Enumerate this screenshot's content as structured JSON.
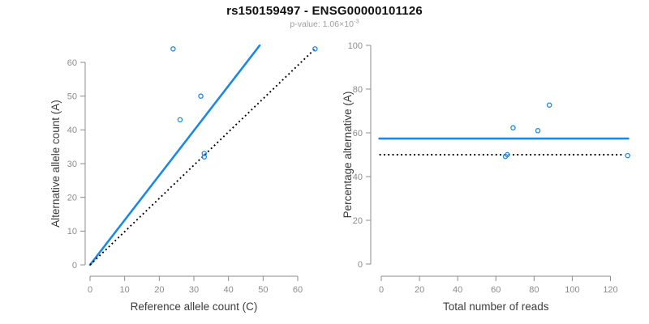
{
  "header": {
    "title": "rs150159497 - ENSG00000101126",
    "subtitle_base": "p-value: 1.06×10",
    "subtitle_exponent": "-3"
  },
  "colors": {
    "accent_blue": "#1E88E5",
    "axis_line_gray": "#8C8C8C",
    "tick_label_gray": "#8C8C8C",
    "axis_title_dark": "#3D3D3D",
    "dotted_black": "#000000",
    "title_black": "#111111",
    "subtitle_gray": "#9E9E9E",
    "background": "#FFFFFF"
  },
  "chart_data": [
    {
      "type": "scatter",
      "name": "allele-counts-panel",
      "xlabel": "Reference allele count (C)",
      "ylabel": "Alternative allele count (A)",
      "xticks": [
        0,
        10,
        20,
        30,
        40,
        50,
        60
      ],
      "yticks": [
        0,
        10,
        20,
        30,
        40,
        50,
        60
      ],
      "xlim": [
        0,
        65.5
      ],
      "ylim": [
        0,
        65.5
      ],
      "grid": false,
      "legend": false,
      "points": [
        {
          "x": 24,
          "y": 64
        },
        {
          "x": 26,
          "y": 43
        },
        {
          "x": 32,
          "y": 50
        },
        {
          "x": 33,
          "y": 32
        },
        {
          "x": 33,
          "y": 33
        },
        {
          "x": 65,
          "y": 64
        }
      ],
      "lines": [
        {
          "name": "fitted-ratio-line",
          "style": "solid",
          "color": "accent_blue",
          "x1": 0,
          "y1": 0,
          "x2": 49,
          "y2": 65
        },
        {
          "name": "identity-line",
          "style": "dotted",
          "color": "dotted_black",
          "x1": 0,
          "y1": 0,
          "x2": 65.3,
          "y2": 64.3
        }
      ]
    },
    {
      "type": "scatter",
      "name": "percentage-panel",
      "xlabel": "Total number of reads",
      "ylabel": "Percentage alternative (A)",
      "xticks": [
        0,
        20,
        40,
        60,
        80,
        100,
        120
      ],
      "yticks": [
        0,
        20,
        40,
        60,
        80,
        100
      ],
      "xlim": [
        0,
        132
      ],
      "ylim": [
        0,
        101
      ],
      "grid": false,
      "legend": false,
      "points": [
        {
          "x": 65,
          "y": 49.2
        },
        {
          "x": 66,
          "y": 50
        },
        {
          "x": 69,
          "y": 62.3
        },
        {
          "x": 82,
          "y": 61
        },
        {
          "x": 88,
          "y": 72.7
        },
        {
          "x": 129,
          "y": 49.6
        }
      ],
      "lines": [
        {
          "name": "fitted-percentage-line",
          "style": "solid",
          "color": "accent_blue",
          "x1": -1,
          "y1": 57.4,
          "x2": 129.3,
          "y2": 57.4
        },
        {
          "name": "null-50pct-line",
          "style": "dotted",
          "color": "dotted_black",
          "x1": -1,
          "y1": 50,
          "x2": 127,
          "y2": 50
        }
      ]
    }
  ]
}
